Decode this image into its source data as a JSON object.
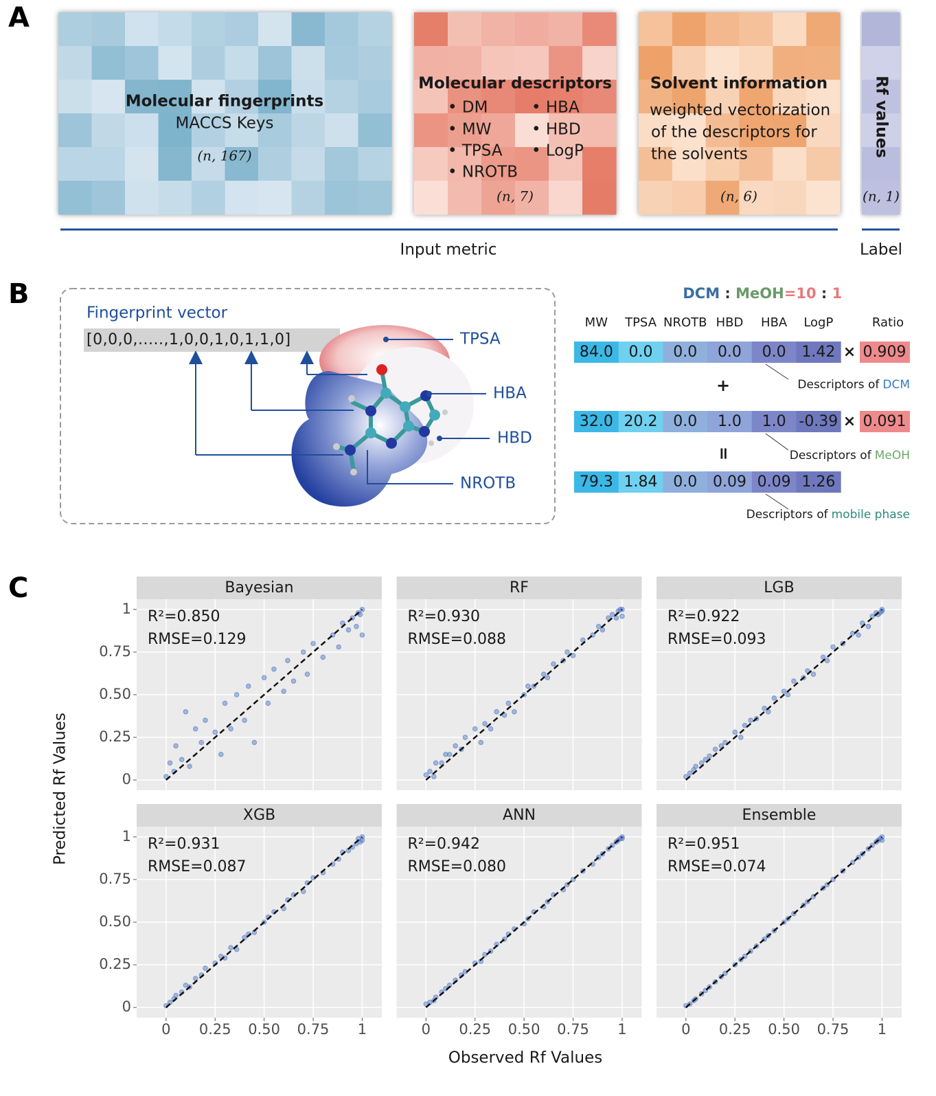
{
  "panel_a": {
    "label": "A",
    "fingerprints": {
      "title": "Molecular fingerprints",
      "subtitle": "MACCS Keys",
      "shape": "(n, 167)"
    },
    "descriptors": {
      "title": "Molecular descriptors",
      "items_left": [
        "• DM",
        "• MW",
        "• TPSA",
        "• NROTB"
      ],
      "items_right": [
        "• HBA",
        "• HBD",
        "• LogP"
      ],
      "shape": "(n, 7)"
    },
    "solvent": {
      "title": "Solvent information",
      "lines": [
        "weighted vectorization",
        "of the descriptors for",
        "the solvents"
      ],
      "shape": "(n, 6)"
    },
    "label_block": {
      "title": "Rf values",
      "shape": "(n, 1)"
    },
    "input_caption": "Input metric",
    "label_caption": "Label"
  },
  "panel_b": {
    "label": "B",
    "vector_title": "Fingerprint vector",
    "vector": "[0,0,0,.....,1,0,0,1,0,1,1,0]",
    "callouts": [
      "TPSA",
      "HBA",
      "HBD",
      "NROTB"
    ],
    "ratio_title": [
      "DCM",
      " : ",
      "MeOH",
      "=",
      "10",
      " : ",
      "1"
    ],
    "columns": [
      "MW",
      "TPSA",
      "NROTB",
      "HBD",
      "HBA",
      "LogP"
    ],
    "ratio_header": "Ratio",
    "rows": [
      {
        "values": [
          "84.0",
          "0.0",
          "0.0",
          "0.0",
          "0.0",
          "1.42"
        ],
        "times": "×",
        "ratio": "0.909",
        "caption": "Descriptors of",
        "caption_name": "DCM"
      },
      {
        "values": [
          "32.0",
          "20.2",
          "0.0",
          "1.0",
          "1.0",
          "-0.39"
        ],
        "times": "×",
        "ratio": "0.091",
        "caption": "Descriptors of",
        "caption_name": "MeOH"
      },
      {
        "values": [
          "79.3",
          "1.84",
          "0.0",
          "0.09",
          "0.09",
          "1.26"
        ],
        "caption": "Descriptors of",
        "caption_name": "mobile phase"
      }
    ],
    "plus": "+",
    "equals": "="
  },
  "panel_c": {
    "label": "C",
    "x_title": "Observed Rf Values",
    "y_title": "Predicted Rf Values"
  },
  "chart_data": [
    {
      "type": "scatter",
      "title": "Bayesian",
      "annotations": [
        "R²=0.850",
        "RMSE=0.129"
      ],
      "color": "#4a74c4",
      "x": [
        0,
        0.02,
        0.04,
        0.05,
        0.08,
        0.1,
        0.12,
        0.15,
        0.18,
        0.2,
        0.25,
        0.28,
        0.3,
        0.33,
        0.36,
        0.4,
        0.42,
        0.45,
        0.5,
        0.52,
        0.55,
        0.6,
        0.62,
        0.65,
        0.7,
        0.72,
        0.75,
        0.8,
        0.85,
        0.88,
        0.9,
        0.93,
        0.95,
        0.97,
        0.98,
        1,
        1,
        0.99
      ],
      "y": [
        0.02,
        0.1,
        0.05,
        0.2,
        0.12,
        0.4,
        0.08,
        0.3,
        0.22,
        0.35,
        0.28,
        0.15,
        0.45,
        0.3,
        0.5,
        0.35,
        0.55,
        0.22,
        0.6,
        0.45,
        0.65,
        0.52,
        0.7,
        0.58,
        0.75,
        0.62,
        0.8,
        0.72,
        0.85,
        0.78,
        0.92,
        0.88,
        0.95,
        0.9,
        0.98,
        1,
        0.85,
        0.97
      ],
      "xlim": [
        -0.15,
        1.1
      ],
      "ylim": [
        -0.06,
        1.06
      ],
      "xticks": [
        0,
        0.25,
        {
          "value": 0.5,
          "label": "0.50"
        },
        0.75,
        1
      ],
      "yticks": [
        0,
        0.25,
        {
          "value": 0.5,
          "label": "0.50"
        },
        0.75,
        1
      ],
      "grid": true
    },
    {
      "type": "scatter",
      "title": "RF",
      "annotations": [
        "R²=0.930",
        "RMSE=0.088"
      ],
      "color": "#4a74c4",
      "x": [
        0,
        0.02,
        0.04,
        0.05,
        0.08,
        0.1,
        0.12,
        0.15,
        0.18,
        0.2,
        0.25,
        0.28,
        0.3,
        0.33,
        0.36,
        0.4,
        0.42,
        0.45,
        0.5,
        0.52,
        0.55,
        0.6,
        0.62,
        0.65,
        0.7,
        0.72,
        0.75,
        0.8,
        0.85,
        0.88,
        0.9,
        0.93,
        0.95,
        0.97,
        0.98,
        1,
        1,
        0.99
      ],
      "y": [
        0.03,
        0.05,
        0.02,
        0.1,
        0.1,
        0.15,
        0.15,
        0.2,
        0.18,
        0.25,
        0.3,
        0.22,
        0.33,
        0.3,
        0.4,
        0.38,
        0.45,
        0.4,
        0.5,
        0.55,
        0.55,
        0.62,
        0.6,
        0.68,
        0.7,
        0.75,
        0.73,
        0.82,
        0.85,
        0.9,
        0.88,
        0.95,
        0.97,
        0.95,
        0.99,
        1,
        0.96,
        1
      ],
      "xlim": [
        -0.15,
        1.1
      ],
      "ylim": [
        -0.06,
        1.06
      ],
      "xticks": [
        0,
        0.25,
        {
          "value": 0.5,
          "label": "0.50"
        },
        0.75,
        1
      ],
      "yticks": [
        0,
        0.25,
        {
          "value": 0.5,
          "label": "0.50"
        },
        0.75,
        1
      ],
      "grid": true
    },
    {
      "type": "scatter",
      "title": "LGB",
      "annotations": [
        "R²=0.922",
        "RMSE=0.093"
      ],
      "color": "#4a74c4",
      "x": [
        0,
        0.02,
        0.04,
        0.05,
        0.08,
        0.1,
        0.12,
        0.15,
        0.18,
        0.2,
        0.25,
        0.28,
        0.3,
        0.33,
        0.36,
        0.4,
        0.42,
        0.45,
        0.5,
        0.52,
        0.55,
        0.6,
        0.62,
        0.65,
        0.7,
        0.72,
        0.75,
        0.8,
        0.85,
        0.88,
        0.9,
        0.93,
        0.95,
        0.97,
        0.98,
        1,
        1,
        0.99
      ],
      "y": [
        0.02,
        0.04,
        0.06,
        0.08,
        0.1,
        0.12,
        0.14,
        0.18,
        0.2,
        0.22,
        0.28,
        0.25,
        0.32,
        0.35,
        0.36,
        0.42,
        0.4,
        0.48,
        0.52,
        0.5,
        0.58,
        0.6,
        0.64,
        0.62,
        0.72,
        0.7,
        0.78,
        0.8,
        0.86,
        0.85,
        0.92,
        0.9,
        0.96,
        0.98,
        0.97,
        1,
        0.99,
        0.98
      ],
      "xlim": [
        -0.15,
        1.1
      ],
      "ylim": [
        -0.06,
        1.06
      ],
      "xticks": [
        0,
        0.25,
        {
          "value": 0.5,
          "label": "0.50"
        },
        0.75,
        1
      ],
      "yticks": [
        0,
        0.25,
        {
          "value": 0.5,
          "label": "0.50"
        },
        0.75,
        1
      ],
      "grid": true
    },
    {
      "type": "scatter",
      "title": "XGB",
      "annotations": [
        "R²=0.931",
        "RMSE=0.087"
      ],
      "color": "#4a74c4",
      "x": [
        0,
        0.02,
        0.04,
        0.05,
        0.08,
        0.1,
        0.12,
        0.15,
        0.18,
        0.2,
        0.25,
        0.28,
        0.3,
        0.33,
        0.36,
        0.4,
        0.42,
        0.45,
        0.5,
        0.52,
        0.55,
        0.6,
        0.62,
        0.65,
        0.7,
        0.72,
        0.75,
        0.8,
        0.85,
        0.88,
        0.9,
        0.93,
        0.95,
        0.97,
        0.98,
        1,
        1,
        0.99
      ],
      "y": [
        0.01,
        0.03,
        0.05,
        0.07,
        0.09,
        0.13,
        0.12,
        0.17,
        0.19,
        0.23,
        0.26,
        0.3,
        0.29,
        0.35,
        0.34,
        0.41,
        0.43,
        0.44,
        0.5,
        0.53,
        0.56,
        0.58,
        0.63,
        0.66,
        0.68,
        0.73,
        0.76,
        0.79,
        0.84,
        0.87,
        0.91,
        0.92,
        0.94,
        0.96,
        0.99,
        0.98,
        1,
        0.97
      ],
      "xlim": [
        -0.15,
        1.1
      ],
      "ylim": [
        -0.06,
        1.06
      ],
      "xticks": [
        0,
        0.25,
        {
          "value": 0.5,
          "label": "0.50"
        },
        0.75,
        1
      ],
      "yticks": [
        0,
        0.25,
        {
          "value": 0.5,
          "label": "0.50"
        },
        0.75,
        1
      ],
      "grid": true
    },
    {
      "type": "scatter",
      "title": "ANN",
      "annotations": [
        "R²=0.942",
        "RMSE=0.080"
      ],
      "color": "#4a74c4",
      "x": [
        0,
        0.02,
        0.04,
        0.05,
        0.08,
        0.1,
        0.12,
        0.15,
        0.18,
        0.2,
        0.25,
        0.28,
        0.3,
        0.33,
        0.36,
        0.4,
        0.42,
        0.45,
        0.5,
        0.52,
        0.55,
        0.6,
        0.62,
        0.65,
        0.7,
        0.72,
        0.75,
        0.8,
        0.85,
        0.88,
        0.9,
        0.93,
        0.95,
        0.97,
        0.98,
        1,
        1,
        0.99
      ],
      "y": [
        0.02,
        0.03,
        0.04,
        0.06,
        0.09,
        0.11,
        0.13,
        0.16,
        0.19,
        0.21,
        0.26,
        0.27,
        0.31,
        0.33,
        0.37,
        0.4,
        0.43,
        0.46,
        0.49,
        0.52,
        0.56,
        0.59,
        0.62,
        0.66,
        0.69,
        0.72,
        0.75,
        0.8,
        0.84,
        0.88,
        0.9,
        0.93,
        0.95,
        0.97,
        0.98,
        1,
        0.99,
        0.99
      ],
      "xlim": [
        -0.15,
        1.1
      ],
      "ylim": [
        -0.06,
        1.06
      ],
      "xticks": [
        0,
        0.25,
        {
          "value": 0.5,
          "label": "0.50"
        },
        0.75,
        1
      ],
      "yticks": [
        0,
        0.25,
        {
          "value": 0.5,
          "label": "0.50"
        },
        0.75,
        1
      ],
      "grid": true
    },
    {
      "type": "scatter",
      "title": "Ensemble",
      "title_color": "#e8262b",
      "annotation_color": "#e8262b",
      "annotations": [
        "R²=0.951",
        "RMSE=0.074"
      ],
      "color": "#4a74c4",
      "x": [
        0,
        0.02,
        0.04,
        0.05,
        0.08,
        0.1,
        0.12,
        0.15,
        0.18,
        0.2,
        0.25,
        0.28,
        0.3,
        0.33,
        0.36,
        0.4,
        0.42,
        0.45,
        0.5,
        0.52,
        0.55,
        0.6,
        0.62,
        0.65,
        0.7,
        0.72,
        0.75,
        0.8,
        0.85,
        0.88,
        0.9,
        0.93,
        0.95,
        0.97,
        0.98,
        1,
        1,
        0.99
      ],
      "y": [
        0.01,
        0.02,
        0.04,
        0.05,
        0.08,
        0.1,
        0.12,
        0.15,
        0.18,
        0.2,
        0.25,
        0.28,
        0.3,
        0.33,
        0.36,
        0.4,
        0.42,
        0.45,
        0.5,
        0.52,
        0.55,
        0.6,
        0.62,
        0.65,
        0.7,
        0.72,
        0.75,
        0.8,
        0.85,
        0.88,
        0.9,
        0.93,
        0.95,
        0.97,
        0.98,
        1,
        0.98,
        0.99
      ],
      "xlim": [
        -0.15,
        1.1
      ],
      "ylim": [
        -0.06,
        1.06
      ],
      "xticks": [
        0,
        0.25,
        {
          "value": 0.5,
          "label": "0.50"
        },
        0.75,
        1
      ],
      "yticks": [
        0,
        0.25,
        {
          "value": 0.5,
          "label": "0.50"
        },
        0.75,
        1
      ],
      "grid": true
    }
  ]
}
